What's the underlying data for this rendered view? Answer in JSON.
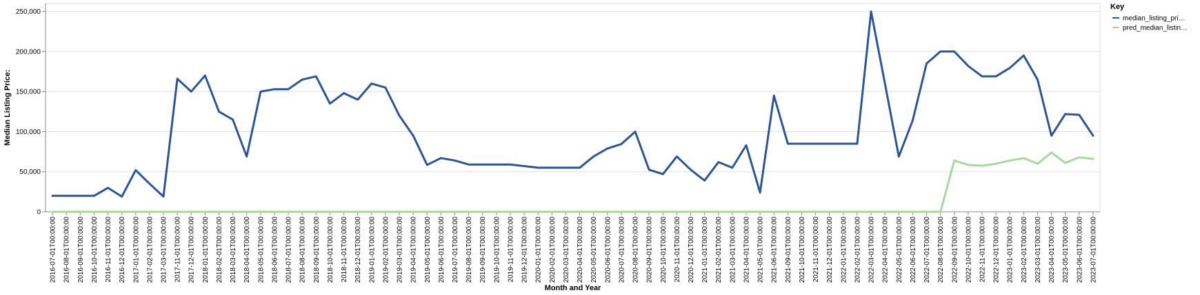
{
  "chart_data": {
    "type": "line",
    "title": "",
    "xlabel": "Month and Year",
    "ylabel": "Median Listing Price:",
    "ylim": [
      0,
      260000
    ],
    "y_ticks": [
      0,
      50000,
      100000,
      150000,
      200000,
      250000
    ],
    "y_tick_labels": [
      "0",
      "50,000",
      "100,000",
      "150,000",
      "200,000",
      "250,000"
    ],
    "grid": true,
    "legend": {
      "title": "Key",
      "placement": "right"
    },
    "x": [
      "2016-07-01T00:00:00",
      "2016-08-01T00:00:00",
      "2016-09-01T00:00:00",
      "2016-10-01T00:00:00",
      "2016-11-01T00:00:00",
      "2016-12-01T00:00:00",
      "2017-01-01T00:00:00",
      "2017-02-01T00:00:00",
      "2017-03-01T00:00:00",
      "2017-11-01T00:00:00",
      "2017-12-01T00:00:00",
      "2018-01-01T00:00:00",
      "2018-02-01T00:00:00",
      "2018-03-01T00:00:00",
      "2018-04-01T00:00:00",
      "2018-05-01T00:00:00",
      "2018-06-01T00:00:00",
      "2018-07-01T00:00:00",
      "2018-08-01T00:00:00",
      "2018-09-01T00:00:00",
      "2018-10-01T00:00:00",
      "2018-11-01T00:00:00",
      "2018-12-01T00:00:00",
      "2019-01-01T00:00:00",
      "2019-02-01T00:00:00",
      "2019-03-01T00:00:00",
      "2019-04-01T00:00:00",
      "2019-05-01T00:00:00",
      "2019-06-01T00:00:00",
      "2019-07-01T00:00:00",
      "2019-08-01T00:00:00",
      "2019-09-01T00:00:00",
      "2019-10-01T00:00:00",
      "2019-11-01T00:00:00",
      "2019-12-01T00:00:00",
      "2020-01-01T00:00:00",
      "2020-02-01T00:00:00",
      "2020-03-01T00:00:00",
      "2020-04-01T00:00:00",
      "2020-05-01T00:00:00",
      "2020-06-01T00:00:00",
      "2020-07-01T00:00:00",
      "2020-08-01T00:00:00",
      "2020-09-01T00:00:00",
      "2020-10-01T00:00:00",
      "2020-11-01T00:00:00",
      "2020-12-01T00:00:00",
      "2021-01-01T00:00:00",
      "2021-02-01T00:00:00",
      "2021-03-01T00:00:00",
      "2021-04-01T00:00:00",
      "2021-05-01T00:00:00",
      "2021-06-01T00:00:00",
      "2021-09-01T00:00:00",
      "2021-10-01T00:00:00",
      "2021-11-01T00:00:00",
      "2021-12-01T00:00:00",
      "2022-01-01T00:00:00",
      "2022-02-01T00:00:00",
      "2022-03-01T00:00:00",
      "2022-04-01T00:00:00",
      "2022-05-01T00:00:00",
      "2022-06-01T00:00:00",
      "2022-07-01T00:00:00",
      "2022-08-01T00:00:00",
      "2022-09-01T00:00:00",
      "2022-10-01T00:00:00",
      "2022-11-01T00:00:00",
      "2022-12-01T00:00:00",
      "2023-01-01T00:00:00",
      "2023-02-01T00:00:00",
      "2023-03-01T00:00:00",
      "2023-04-01T00:00:00",
      "2023-05-01T00:00:00",
      "2023-06-01T00:00:00",
      "2023-07-01T00:00:00"
    ],
    "series": [
      {
        "name": "median_listing_pri…",
        "color": "#2a5599",
        "values": [
          19900,
          19900,
          19900,
          19900,
          29900,
          19000,
          52000,
          35000,
          19000,
          166000,
          150000,
          170000,
          125000,
          115000,
          69000,
          150000,
          153000,
          153000,
          165000,
          169000,
          135000,
          148000,
          140000,
          160000,
          155000,
          120000,
          95000,
          58500,
          67000,
          64000,
          59000,
          59000,
          59000,
          59000,
          57000,
          55000,
          55000,
          55000,
          55000,
          69000,
          79000,
          84500,
          100000,
          52500,
          47000,
          69000,
          52500,
          39000,
          62000,
          55000,
          83000,
          24000,
          145000,
          85000,
          85000,
          85000,
          85000,
          85000,
          85000,
          250000,
          160000,
          69000,
          114000,
          185000,
          200000,
          200000,
          182000,
          169000,
          169000,
          179500,
          195000,
          165000,
          95000,
          122000,
          121000,
          95000
        ]
      },
      {
        "name": "pred_median_listin…",
        "color": "#a6d99c",
        "values": [
          0,
          0,
          0,
          0,
          0,
          0,
          0,
          0,
          0,
          0,
          0,
          0,
          0,
          0,
          0,
          0,
          0,
          0,
          0,
          0,
          0,
          0,
          0,
          0,
          0,
          0,
          0,
          0,
          0,
          0,
          0,
          0,
          0,
          0,
          0,
          0,
          0,
          0,
          0,
          0,
          0,
          0,
          0,
          0,
          0,
          0,
          0,
          0,
          0,
          0,
          0,
          0,
          0,
          0,
          0,
          0,
          0,
          0,
          0,
          0,
          0,
          0,
          0,
          0,
          0,
          64000,
          58500,
          57500,
          60000,
          64000,
          67000,
          60000,
          74000,
          61000,
          68000,
          66000
        ]
      }
    ]
  }
}
